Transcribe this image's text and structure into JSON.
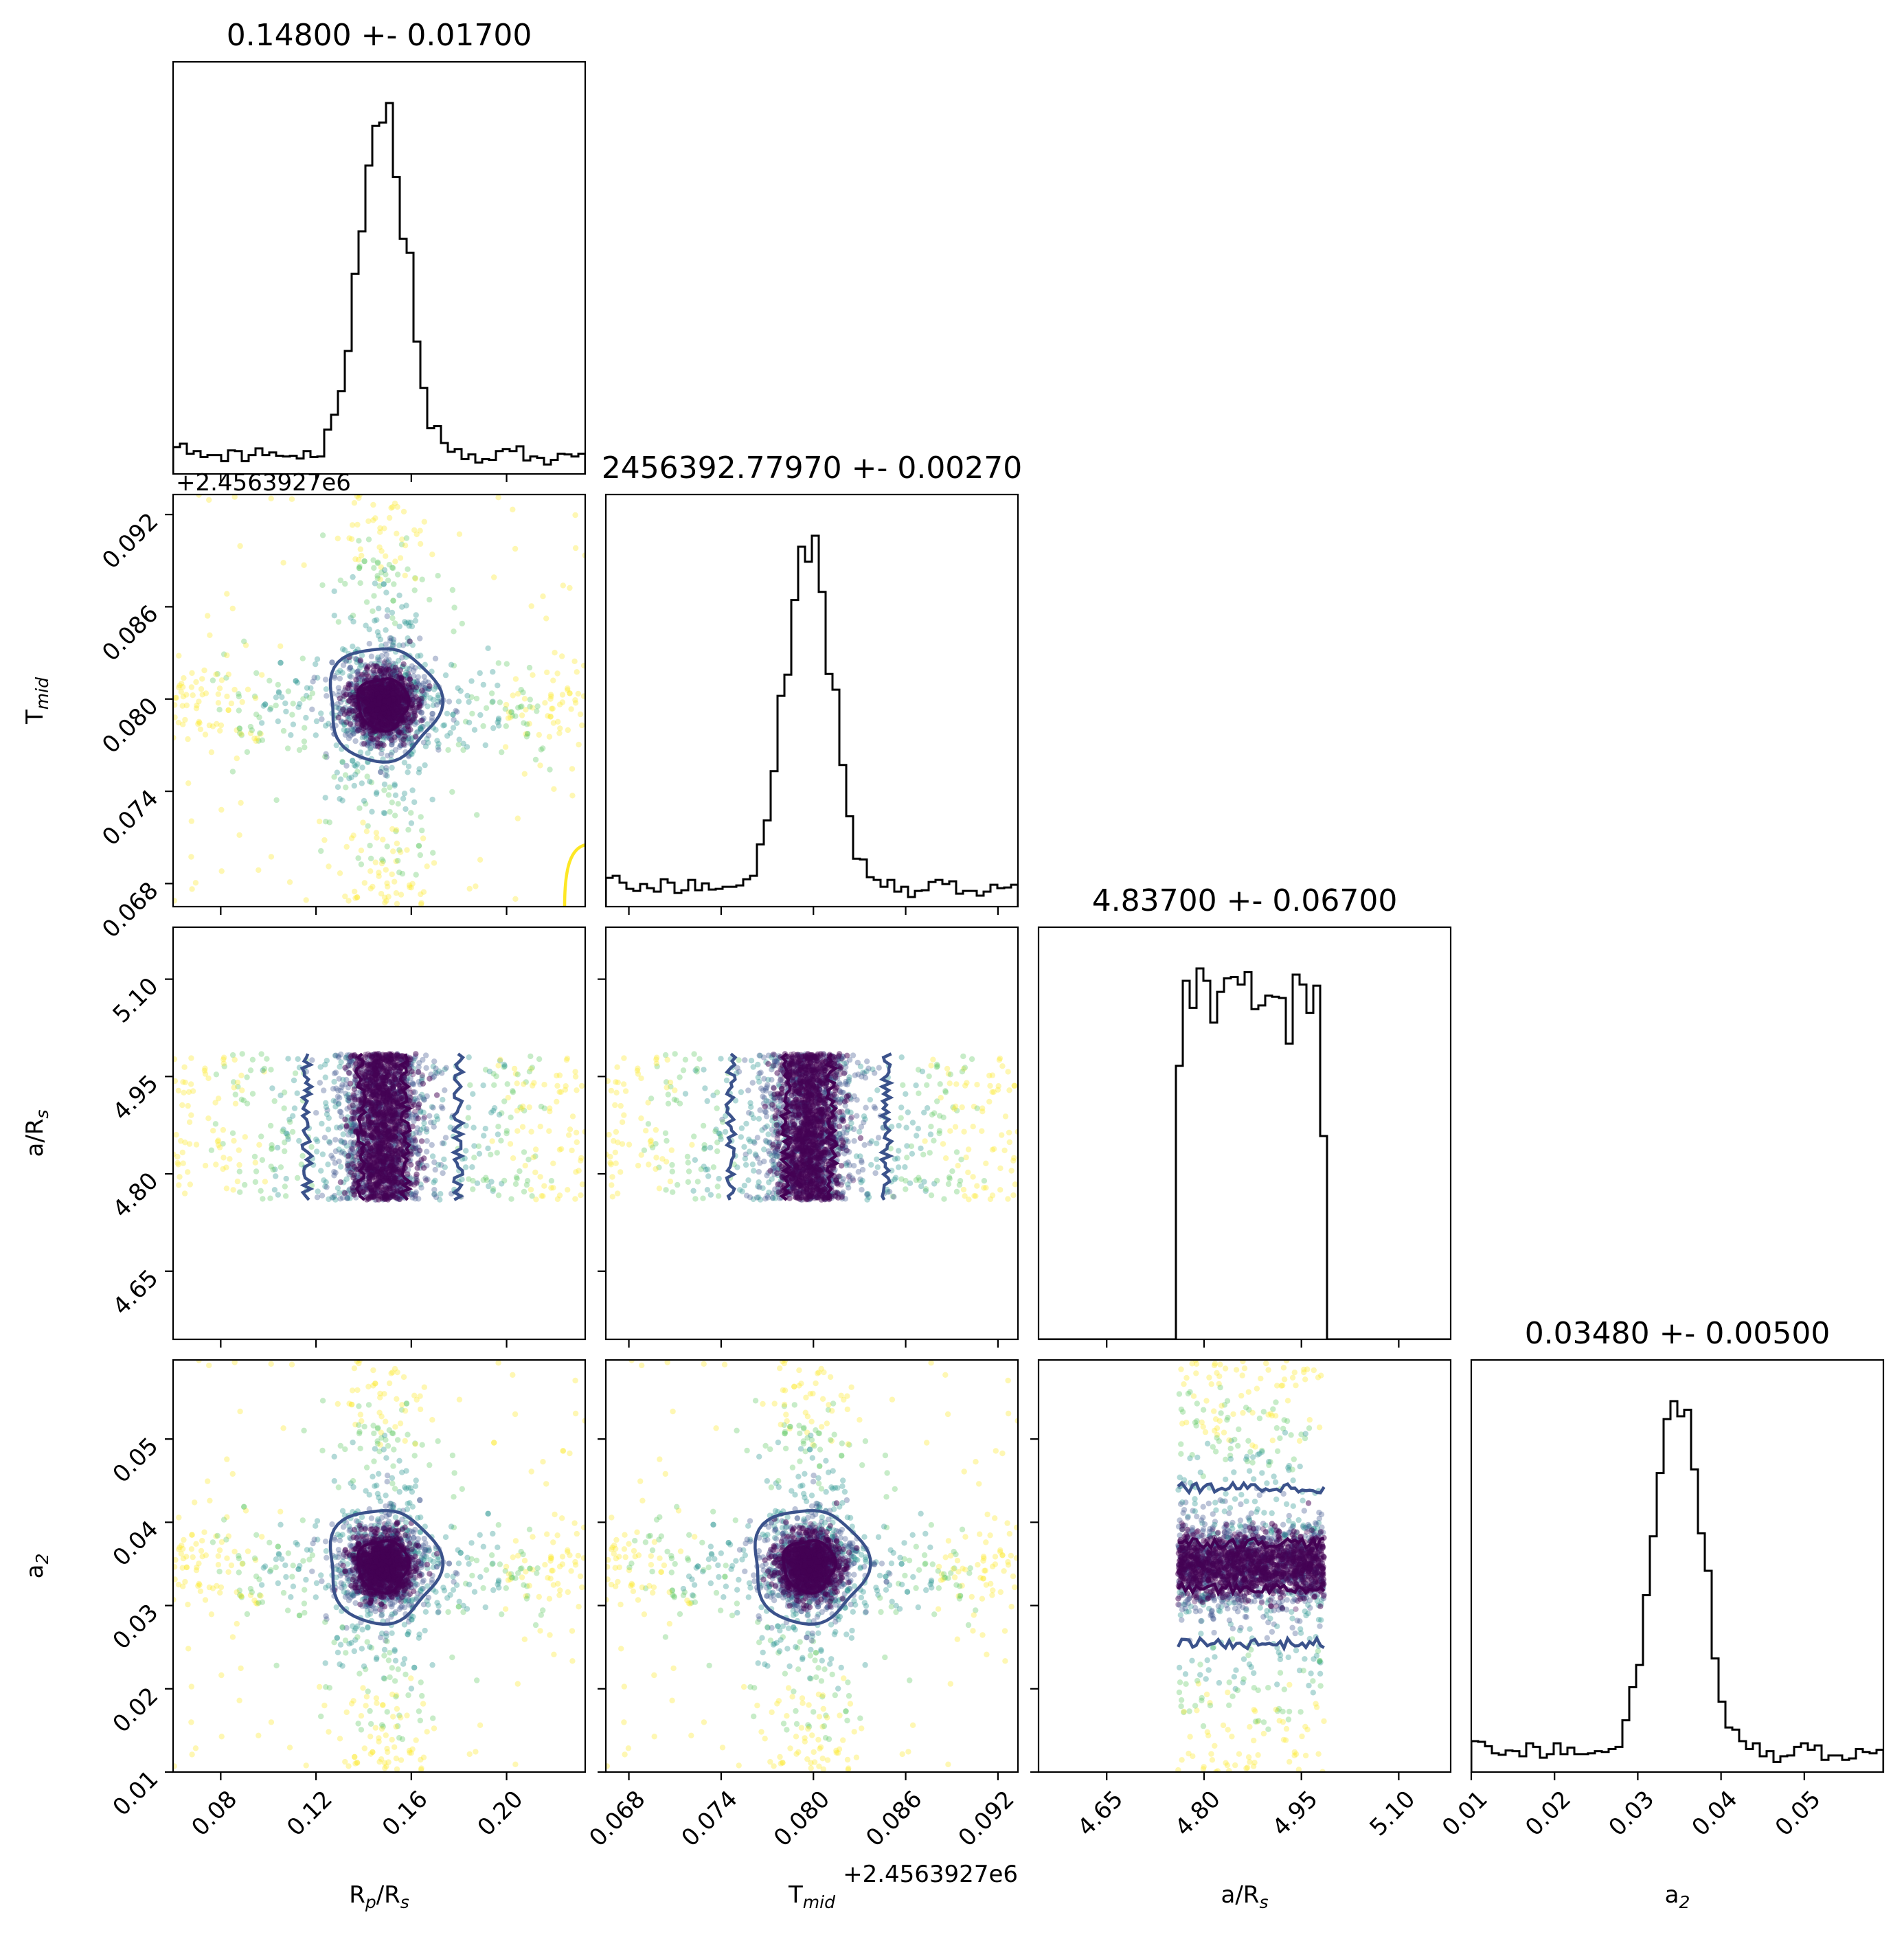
{
  "chart_data": {
    "type": "corner",
    "parameters": [
      {
        "id": "rp",
        "label": "R",
        "sub": "p",
        "label_tail": "/R",
        "sub2": "s",
        "title": "0.14800 +- 0.01700",
        "range": [
          0.06,
          0.233
        ],
        "ticks": [
          0.08,
          0.12,
          0.16,
          0.2
        ],
        "tick_labels": [
          "0.08",
          "0.12",
          "0.16",
          "0.20"
        ],
        "center": 0.148,
        "sigma": 0.017
      },
      {
        "id": "tmid",
        "label": "T",
        "sub": "mid",
        "label_tail": "",
        "sub2": "",
        "title": "2456392.77970 +- 0.00270",
        "offset": "+2.4563927e6",
        "range": [
          0.0665,
          0.0933
        ],
        "ticks": [
          0.068,
          0.074,
          0.08,
          0.086,
          0.092
        ],
        "tick_labels": [
          "0.068",
          "0.074",
          "0.080",
          "0.086",
          "0.092"
        ],
        "center": 0.0797,
        "sigma": 0.0027
      },
      {
        "id": "ars",
        "label": "a/R",
        "sub": "s",
        "label_tail": "",
        "sub2": "",
        "title": "4.83700 +- 0.06700",
        "range": [
          4.545,
          5.18
        ],
        "ticks": [
          4.65,
          4.8,
          4.95,
          5.1
        ],
        "tick_labels": [
          "4.65",
          "4.80",
          "4.95",
          "5.10"
        ],
        "center": 4.837,
        "sigma": 0.067,
        "support": [
          4.76,
          4.985
        ]
      },
      {
        "id": "a2",
        "label": "a",
        "sub": "2",
        "label_tail": "",
        "sub2": "",
        "title": "0.03480 +- 0.00500",
        "range": [
          0.01,
          0.0595
        ],
        "ticks": [
          0.01,
          0.02,
          0.03,
          0.04,
          0.05
        ],
        "tick_labels": [
          "0.01",
          "0.02",
          "0.03",
          "0.04",
          "0.05"
        ],
        "center": 0.0348,
        "sigma": 0.005
      }
    ],
    "histogram_bins": 60,
    "contour_levels": [
      "1-sigma",
      "2-sigma"
    ],
    "colors": {
      "hist": "#000000",
      "inner_contour": "#440154",
      "outer_contour": "#3b528b",
      "extra_contour": "#fde725",
      "colormap": "viridis"
    },
    "grid": false,
    "legend": "none"
  }
}
